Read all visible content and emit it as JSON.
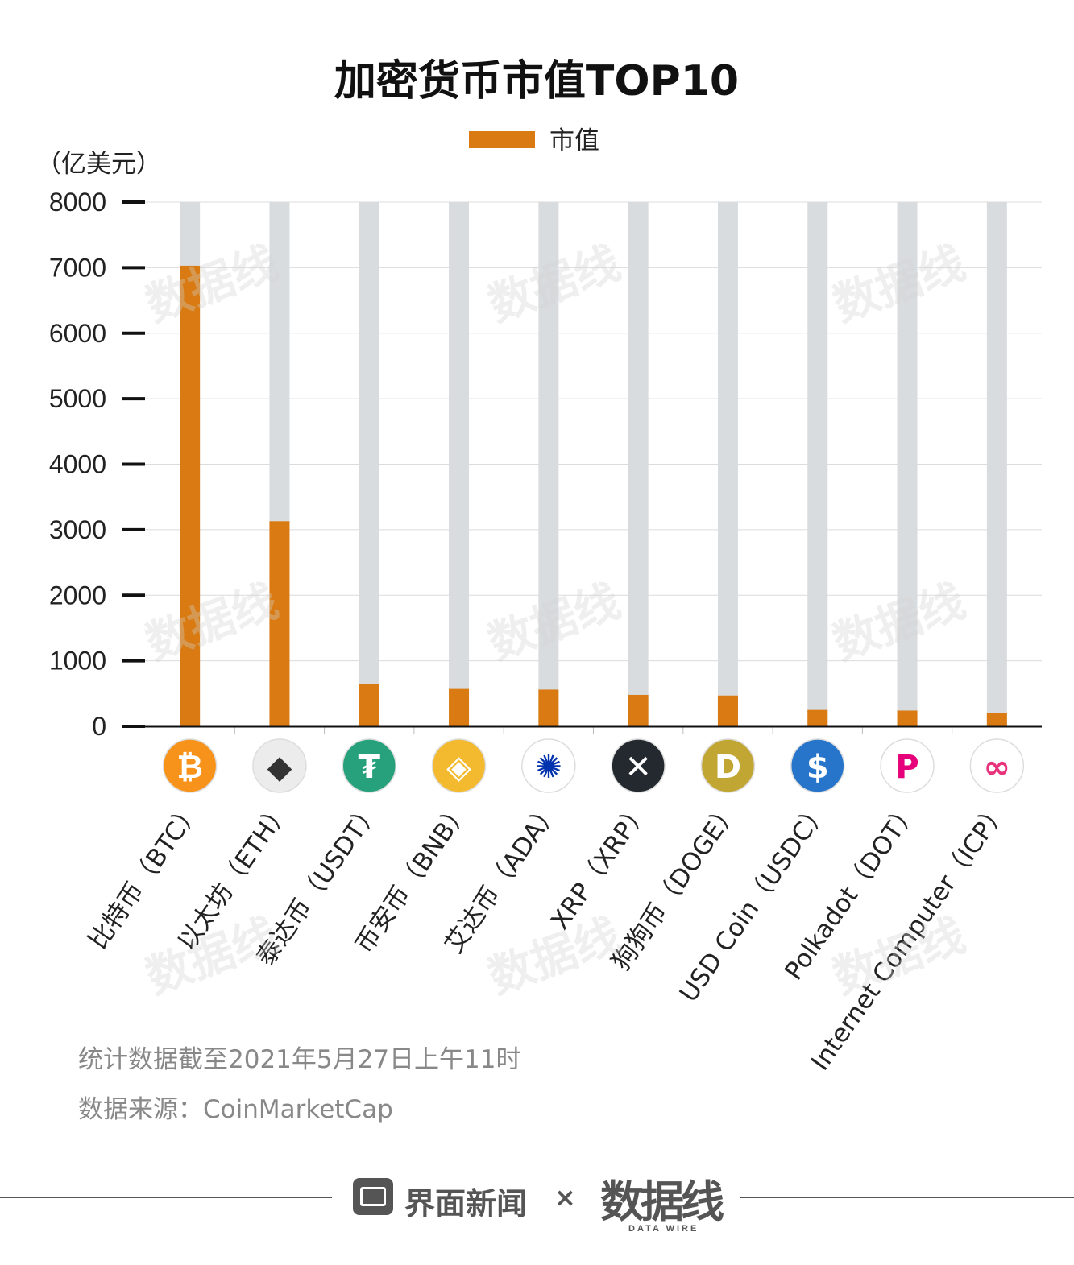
{
  "chart_data": {
    "type": "bar",
    "title": "加密货币市值TOP10",
    "y_unit_label": "（亿美元）",
    "ylim": [
      0,
      8000
    ],
    "yticks": [
      0,
      1000,
      2000,
      3000,
      4000,
      5000,
      6000,
      7000,
      8000
    ],
    "grid": true,
    "legend_position": "top-center",
    "categories": [
      "比特币（BTC）",
      "以太坊（ETH）",
      "泰达币（USDT）",
      "币安币（BNB）",
      "艾达币（ADA）",
      "XRP（XRP）",
      "狗狗币（DOGE）",
      "USD Coin（USDC）",
      "Polkadot（DOT）",
      "Internet Computer（ICP）"
    ],
    "series": [
      {
        "name": "市值",
        "values": [
          7030,
          3130,
          650,
          570,
          560,
          480,
          470,
          250,
          240,
          200
        ]
      }
    ],
    "colors": {
      "bar": "#d97b12",
      "bar_background": "#d9dcde",
      "grid": "#dcdcdc",
      "axis": "#111111"
    }
  },
  "coin_icons": [
    {
      "name": "bitcoin-icon",
      "glyph": "₿",
      "bg": "#f7931a",
      "fg": "#ffffff"
    },
    {
      "name": "ethereum-icon",
      "glyph": "◆",
      "bg": "#ececec",
      "fg": "#333333"
    },
    {
      "name": "tether-icon",
      "glyph": "₮",
      "bg": "#26a17b",
      "fg": "#ffffff"
    },
    {
      "name": "binance-icon",
      "glyph": "◈",
      "bg": "#f3ba2f",
      "fg": "#ffffff"
    },
    {
      "name": "cardano-icon",
      "glyph": "✺",
      "bg": "#ffffff",
      "fg": "#0033ad"
    },
    {
      "name": "xrp-icon",
      "glyph": "✕",
      "bg": "#23292f",
      "fg": "#ffffff"
    },
    {
      "name": "dogecoin-icon",
      "glyph": "D",
      "bg": "#c2a633",
      "fg": "#ffffff"
    },
    {
      "name": "usdc-icon",
      "glyph": "$",
      "bg": "#2775ca",
      "fg": "#ffffff"
    },
    {
      "name": "polkadot-icon",
      "glyph": "P",
      "bg": "#ffffff",
      "fg": "#e6007a"
    },
    {
      "name": "icp-icon",
      "glyph": "∞",
      "bg": "#ffffff",
      "fg": "#e8327c"
    }
  ],
  "notes": {
    "stat_time": "统计数据截至2021年5月27日上午11时",
    "source": "数据来源：CoinMarketCap"
  },
  "branding": {
    "publisher": "界面新闻",
    "cross": "×",
    "partner": "数据线",
    "partner_sub": "DATA WIRE"
  }
}
